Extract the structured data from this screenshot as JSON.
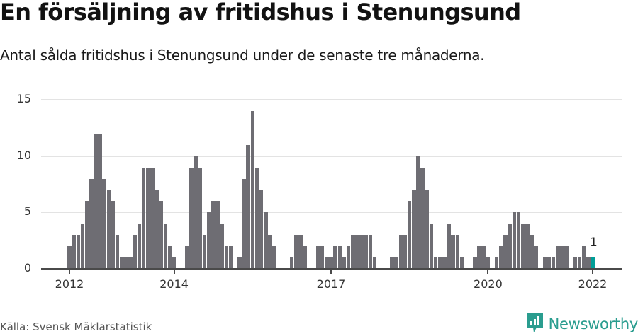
{
  "header": {
    "title": "En försäljning av fritidshus i Stenungsund",
    "subtitle": "Antal sålda fritidshus i Stenungsund under de senaste tre månaderna."
  },
  "footer": {
    "source": "Källa: Svensk Mäklarstatistik",
    "brand": "Newsworthy"
  },
  "colors": {
    "bar": "#6e6d73",
    "highlight": "#009e97",
    "grid": "#e3e3e3",
    "axis": "#4a4a4a",
    "brand": "#2a9d8f"
  },
  "chart_data": {
    "type": "bar",
    "title": "En försäljning av fritidshus i Stenungsund",
    "subtitle": "Antal sålda fritidshus i Stenungsund under de senaste tre månaderna.",
    "xlabel": "",
    "ylabel": "",
    "ylim": [
      0,
      15
    ],
    "yticks": [
      0,
      5,
      10,
      15
    ],
    "xticks": [
      {
        "label": "2012",
        "index": 0
      },
      {
        "label": "2014",
        "index": 24
      },
      {
        "label": "2017",
        "index": 60
      },
      {
        "label": "2020",
        "index": 96
      },
      {
        "label": "2022",
        "index": 120
      }
    ],
    "grid": true,
    "legend": null,
    "start": "2012-01",
    "frequency": "monthly",
    "highlight_index": 120,
    "annotation": {
      "index": 120,
      "text": "1"
    },
    "values": [
      2,
      3,
      3,
      4,
      6,
      8,
      12,
      12,
      8,
      7,
      6,
      3,
      1,
      1,
      1,
      3,
      4,
      9,
      9,
      9,
      7,
      6,
      4,
      2,
      1,
      0,
      0,
      2,
      9,
      10,
      9,
      3,
      5,
      6,
      6,
      4,
      2,
      2,
      0,
      1,
      8,
      11,
      14,
      9,
      7,
      5,
      3,
      2,
      0,
      0,
      0,
      1,
      3,
      3,
      2,
      0,
      0,
      2,
      2,
      1,
      1,
      2,
      2,
      1,
      2,
      3,
      3,
      3,
      3,
      3,
      1,
      0,
      0,
      0,
      1,
      1,
      3,
      3,
      6,
      7,
      10,
      9,
      7,
      4,
      1,
      1,
      1,
      4,
      3,
      3,
      1,
      0,
      0,
      1,
      2,
      2,
      1,
      0,
      1,
      2,
      3,
      4,
      5,
      5,
      4,
      4,
      3,
      2,
      0,
      1,
      1,
      1,
      2,
      2,
      2,
      0,
      1,
      1,
      2,
      1,
      1
    ]
  }
}
